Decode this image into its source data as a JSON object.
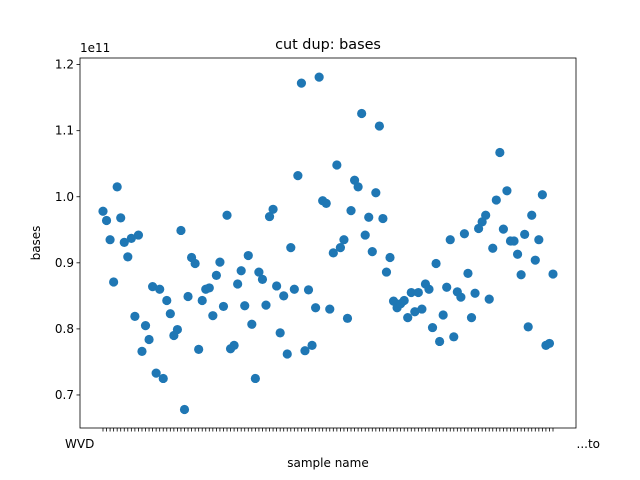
{
  "chart_data": {
    "type": "scatter",
    "title": "cut dup: bases",
    "xlabel": "sample name",
    "ylabel": "bases",
    "y_offset_label": "1e11",
    "y_scale": 100000000000.0,
    "ylim": [
      0.65,
      1.21
    ],
    "yticks": [
      0.7,
      0.8,
      0.9,
      1.0,
      1.1,
      1.2
    ],
    "ytick_labels": [
      "0.7",
      "0.8",
      "0.9",
      "1.0",
      "1.1",
      "1.2"
    ],
    "x_tick_label_first": "WVD",
    "x_tick_label_last": "...to",
    "grid": false,
    "marker_color": "#1f77b4",
    "values": [
      0.978,
      0.964,
      0.935,
      0.871,
      1.015,
      0.968,
      0.931,
      0.909,
      0.937,
      0.819,
      0.942,
      0.766,
      0.805,
      0.784,
      0.864,
      0.733,
      0.86,
      0.725,
      0.843,
      0.823,
      0.79,
      0.799,
      0.949,
      0.678,
      0.849,
      0.908,
      0.899,
      0.769,
      0.843,
      0.86,
      0.862,
      0.82,
      0.881,
      0.901,
      0.834,
      0.972,
      0.77,
      0.775,
      0.868,
      0.888,
      0.835,
      0.911,
      0.807,
      0.725,
      0.886,
      0.875,
      0.836,
      0.97,
      0.981,
      0.865,
      0.794,
      0.85,
      0.762,
      0.923,
      0.86,
      1.032,
      1.172,
      0.767,
      0.859,
      0.775,
      0.832,
      1.181,
      0.994,
      0.99,
      0.83,
      0.915,
      1.048,
      0.923,
      0.935,
      0.816,
      0.979,
      1.025,
      1.015,
      1.126,
      0.942,
      0.969,
      0.917,
      1.006,
      1.107,
      0.967,
      0.886,
      0.908,
      0.842,
      0.832,
      0.838,
      0.843,
      0.817,
      0.855,
      0.826,
      0.855,
      0.83,
      0.868,
      0.86,
      0.802,
      0.899,
      0.781,
      0.821,
      0.863,
      0.935,
      0.788,
      0.856,
      0.848,
      0.944,
      0.884,
      0.817,
      0.854,
      0.952,
      0.962,
      0.972,
      0.845,
      0.922,
      0.995,
      1.067,
      0.951,
      1.009,
      0.933,
      0.933,
      0.913,
      0.882,
      0.943,
      0.803,
      0.972,
      0.904,
      0.935,
      1.003,
      0.775,
      0.778,
      0.883
    ]
  }
}
